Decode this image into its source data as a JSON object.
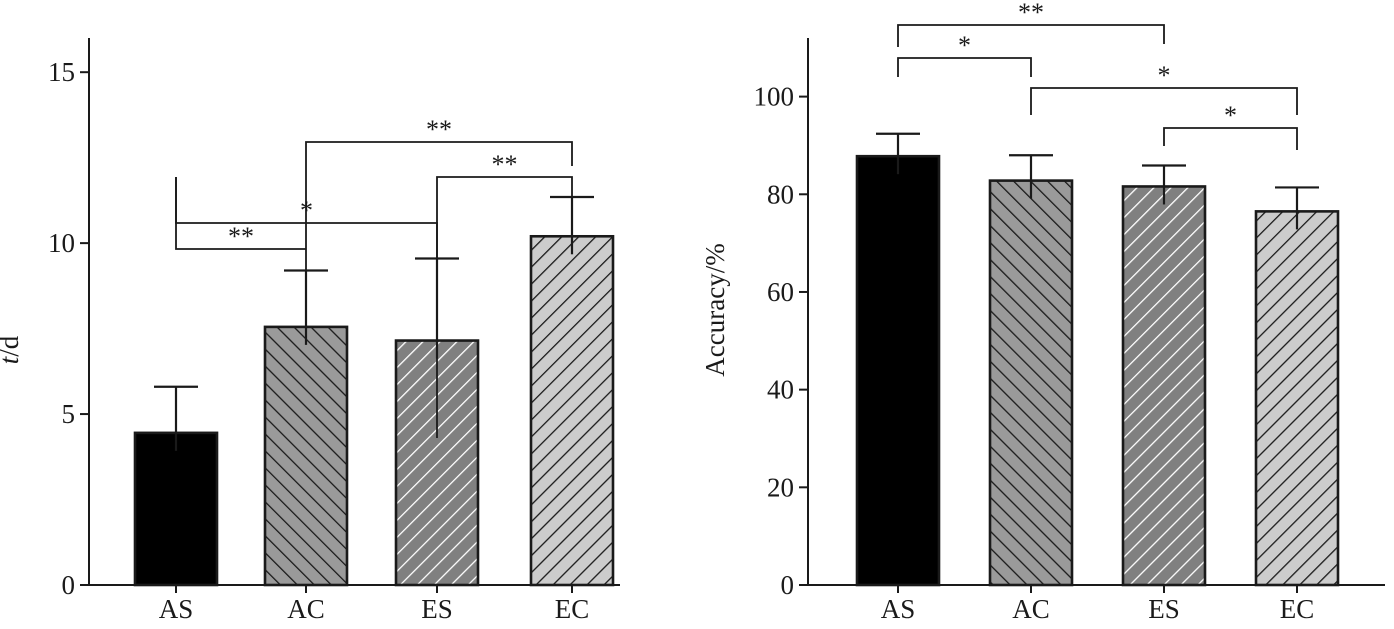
{
  "chart_data": [
    {
      "type": "bar",
      "categories": [
        "AS",
        "AC",
        "ES",
        "EC"
      ],
      "values": [
        4.45,
        7.55,
        7.15,
        10.2
      ],
      "errors": [
        1.35,
        1.65,
        2.4,
        1.15
      ],
      "ylabel": "t/d",
      "ylim": [
        0,
        16
      ],
      "yticks": [
        0,
        5,
        10,
        15
      ],
      "yticklabels": [
        "0",
        "5",
        "10",
        "15"
      ],
      "bar_styles": [
        "solid-black",
        "dark-gray-backslash",
        "gray-white-slash",
        "light-gray-slash"
      ],
      "significance": [
        {
          "from": "AS",
          "to": "AC",
          "label": "**"
        },
        {
          "from": "AS",
          "to": "ES",
          "label": "*"
        },
        {
          "from": "ES",
          "to": "EC",
          "label": "**"
        },
        {
          "from": "AC",
          "to": "EC",
          "label": "**"
        }
      ],
      "grid": false
    },
    {
      "type": "bar",
      "categories": [
        "AS",
        "AC",
        "ES",
        "EC"
      ],
      "values": [
        87.8,
        82.8,
        81.6,
        76.5
      ],
      "errors": [
        4.6,
        5.2,
        4.3,
        4.9
      ],
      "ylabel": "Accuracy/%",
      "ylim": [
        0,
        112
      ],
      "yticks": [
        0,
        20,
        40,
        60,
        80,
        100
      ],
      "yticklabels": [
        "0",
        "20",
        "40",
        "60",
        "80",
        "100"
      ],
      "bar_styles": [
        "solid-black",
        "dark-gray-backslash",
        "gray-white-slash",
        "light-gray-slash"
      ],
      "significance": [
        {
          "from": "AS",
          "to": "ES",
          "label": "**"
        },
        {
          "from": "AS",
          "to": "AC",
          "label": "*"
        },
        {
          "from": "AC",
          "to": "EC",
          "label": "*"
        },
        {
          "from": "ES",
          "to": "EC",
          "label": "*"
        }
      ],
      "grid": false
    }
  ],
  "colors": {
    "ink": "#1a1a1a",
    "solid_black": "#000000",
    "dark_gray": "#9a9a9a",
    "mid_gray": "#808080",
    "light_gray": "#cccccc",
    "white": "#ffffff"
  }
}
